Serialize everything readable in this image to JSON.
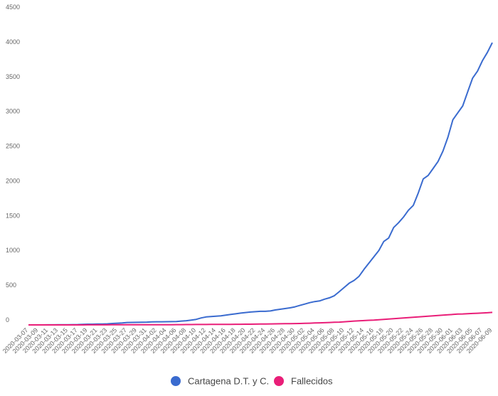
{
  "chart_data": {
    "type": "line",
    "categories": [
      "2020-03-07",
      null,
      "2020-03-09",
      null,
      "2020-03-11",
      null,
      "2020-03-13",
      null,
      "2020-03-15",
      null,
      "2020-03-17",
      null,
      "2020-03-19",
      null,
      "2020-03-21",
      null,
      "2020-03-23",
      null,
      "2020-03-25",
      null,
      "2020-03-27",
      null,
      "2020-03-29",
      null,
      "2020-03-31",
      null,
      "2020-04-02",
      null,
      "2020-04-04",
      null,
      "2020-04-06",
      null,
      "2020-04-08",
      null,
      "2020-04-10",
      null,
      "2020-04-12",
      null,
      "2020-04-14",
      null,
      "2020-04-16",
      null,
      "2020-04-18",
      null,
      "2020-04-20",
      null,
      "2020-04-22",
      null,
      "2020-04-24",
      null,
      "2020-04-26",
      null,
      "2020-04-28",
      null,
      "2020-04-30",
      null,
      "2020-05-02",
      null,
      "2020-05-04",
      null,
      "2020-05-06",
      null,
      "2020-05-08",
      null,
      "2020-05-10",
      null,
      "2020-05-12",
      null,
      "2020-05-14",
      null,
      "2020-05-16",
      null,
      "2020-05-18",
      null,
      "2020-05-20",
      null,
      "2020-05-22",
      null,
      "2020-05-24",
      null,
      "2020-05-26",
      null,
      "2020-05-28",
      null,
      "2020-05-30",
      null,
      "2020-06-01",
      null,
      "2020-06-03",
      null,
      "2020-06-05",
      null,
      "2020-06-07",
      null,
      "2020-06-09"
    ],
    "series": [
      {
        "name": "Cartagena D.T. y C.",
        "color": "#3a6bcf",
        "values": [
          0,
          0,
          0,
          0,
          1,
          1,
          2,
          3,
          3,
          4,
          5,
          8,
          10,
          10,
          12,
          12,
          15,
          20,
          25,
          28,
          35,
          36,
          37,
          38,
          40,
          44,
          45,
          45,
          46,
          47,
          48,
          55,
          60,
          70,
          80,
          100,
          115,
          120,
          125,
          130,
          140,
          150,
          160,
          170,
          178,
          185,
          190,
          195,
          195,
          200,
          215,
          225,
          235,
          245,
          260,
          280,
          300,
          320,
          335,
          345,
          370,
          390,
          420,
          480,
          540,
          600,
          640,
          700,
          800,
          890,
          980,
          1070,
          1200,
          1250,
          1400,
          1470,
          1550,
          1650,
          1720,
          1900,
          2100,
          2150,
          2250,
          2350,
          2500,
          2700,
          2950,
          3050,
          3150,
          3350,
          3550,
          3650,
          3800,
          3920,
          4060
        ]
      },
      {
        "name": "Fallecidos",
        "color": "#e91e78",
        "values": [
          0,
          0,
          0,
          0,
          0,
          0,
          0,
          0,
          0,
          0,
          0,
          0,
          1,
          1,
          1,
          1,
          1,
          2,
          2,
          2,
          2,
          2,
          3,
          3,
          3,
          3,
          3,
          3,
          3,
          3,
          4,
          4,
          5,
          5,
          6,
          6,
          6,
          7,
          7,
          7,
          8,
          8,
          9,
          9,
          10,
          10,
          11,
          12,
          13,
          14,
          15,
          16,
          17,
          18,
          19,
          20,
          22,
          25,
          28,
          30,
          32,
          35,
          38,
          40,
          45,
          50,
          55,
          58,
          62,
          66,
          70,
          75,
          80,
          85,
          90,
          95,
          100,
          105,
          110,
          115,
          120,
          125,
          130,
          135,
          140,
          145,
          150,
          155,
          158,
          162,
          165,
          168,
          172,
          175,
          180
        ]
      }
    ],
    "ylim": [
      0,
      4500
    ],
    "yticks": [
      0,
      500,
      1000,
      1500,
      2000,
      2500,
      3000,
      3500,
      4000,
      4500
    ],
    "grid": false
  }
}
